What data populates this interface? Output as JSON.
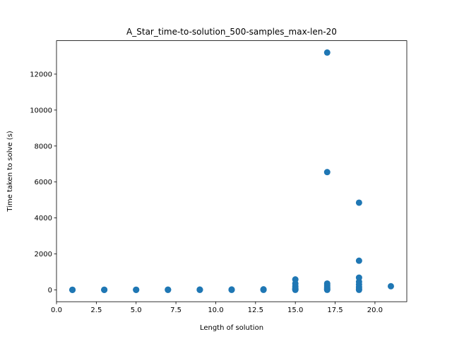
{
  "chart_data": {
    "type": "scatter",
    "title": "A_Star_time-to-solution_500-samples_max-len-20",
    "xlabel": "Length of solution",
    "ylabel": "Time taken to solve (s)",
    "xlim": [
      0.0,
      22.0
    ],
    "ylim": [
      -660,
      13860
    ],
    "x_ticks": [
      0.0,
      2.5,
      5.0,
      7.5,
      10.0,
      12.5,
      15.0,
      17.5,
      20.0
    ],
    "x_tick_labels": [
      "0.0",
      "2.5",
      "5.0",
      "7.5",
      "10.0",
      "12.5",
      "15.0",
      "17.5",
      "20.0"
    ],
    "y_ticks": [
      0,
      2000,
      4000,
      6000,
      8000,
      10000,
      12000
    ],
    "y_tick_labels": [
      "0",
      "2000",
      "4000",
      "6000",
      "8000",
      "10000",
      "12000"
    ],
    "grid": false,
    "color": "#1f77b4",
    "points": [
      {
        "x": 1,
        "y": 0
      },
      {
        "x": 1,
        "y": 1
      },
      {
        "x": 1,
        "y": 2
      },
      {
        "x": 3,
        "y": 0
      },
      {
        "x": 3,
        "y": 2
      },
      {
        "x": 3,
        "y": 5
      },
      {
        "x": 5,
        "y": 0
      },
      {
        "x": 5,
        "y": 3
      },
      {
        "x": 5,
        "y": 8
      },
      {
        "x": 7,
        "y": 0
      },
      {
        "x": 7,
        "y": 5
      },
      {
        "x": 7,
        "y": 12
      },
      {
        "x": 9,
        "y": 0
      },
      {
        "x": 9,
        "y": 6
      },
      {
        "x": 9,
        "y": 15
      },
      {
        "x": 11,
        "y": 0
      },
      {
        "x": 11,
        "y": 8
      },
      {
        "x": 11,
        "y": 20
      },
      {
        "x": 13,
        "y": 0
      },
      {
        "x": 13,
        "y": 10
      },
      {
        "x": 13,
        "y": 30
      },
      {
        "x": 15,
        "y": 0
      },
      {
        "x": 15,
        "y": 20
      },
      {
        "x": 15,
        "y": 50
      },
      {
        "x": 15,
        "y": 100
      },
      {
        "x": 15,
        "y": 200
      },
      {
        "x": 15,
        "y": 350
      },
      {
        "x": 15,
        "y": 580
      },
      {
        "x": 17,
        "y": 0
      },
      {
        "x": 17,
        "y": 30
      },
      {
        "x": 17,
        "y": 80
      },
      {
        "x": 17,
        "y": 150
      },
      {
        "x": 17,
        "y": 250
      },
      {
        "x": 17,
        "y": 350
      },
      {
        "x": 17,
        "y": 6550
      },
      {
        "x": 17,
        "y": 13200
      },
      {
        "x": 19,
        "y": 0
      },
      {
        "x": 19,
        "y": 50
      },
      {
        "x": 19,
        "y": 150
      },
      {
        "x": 19,
        "y": 300
      },
      {
        "x": 19,
        "y": 450
      },
      {
        "x": 19,
        "y": 680
      },
      {
        "x": 19,
        "y": 1620
      },
      {
        "x": 19,
        "y": 4850
      },
      {
        "x": 21,
        "y": 200
      }
    ]
  }
}
